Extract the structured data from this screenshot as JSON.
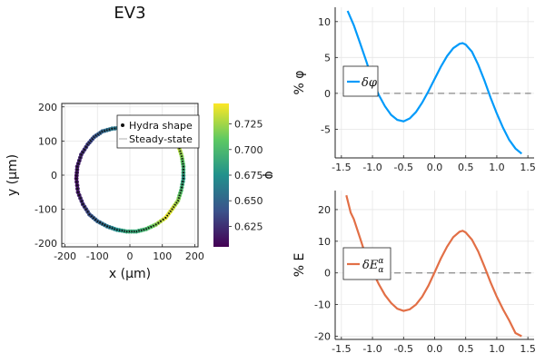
{
  "chart_data": [
    {
      "type": "scatter",
      "title": "EV3",
      "xlabel": "x (μm)",
      "ylabel": "y (μm)",
      "xlim": [
        -210,
        210
      ],
      "ylim": [
        -210,
        210
      ],
      "xticks": [
        "-200",
        "-100",
        "0",
        "100",
        "200"
      ],
      "yticks": [
        "-200",
        "-100",
        "0",
        "100",
        "200"
      ],
      "grid": true,
      "legend_position": "top-right",
      "colorbar": {
        "label": "φ",
        "range": [
          0.605,
          0.745
        ],
        "ticks": [
          "0.625",
          "0.650",
          "0.675",
          "0.700",
          "0.725"
        ],
        "colormap": "viridis"
      },
      "series": [
        {
          "name": "Hydra shape",
          "kind": "markers",
          "x": [
            -20,
            20,
            60,
            100,
            130,
            150,
            160,
            165,
            165,
            158,
            148,
            130,
            110,
            80,
            50,
            20,
            -10,
            -40,
            -70,
            -100,
            -125,
            -145,
            -160,
            -165,
            -162,
            -150,
            -130,
            -110,
            -85,
            -55
          ],
          "y": [
            140,
            140,
            136,
            128,
            110,
            85,
            55,
            25,
            -10,
            -45,
            -75,
            -100,
            -125,
            -145,
            -158,
            -165,
            -165,
            -160,
            -150,
            -135,
            -115,
            -85,
            -50,
            -10,
            25,
            60,
            90,
            112,
            128,
            136
          ],
          "phi": [
            0.66,
            0.65,
            0.7,
            0.72,
            0.74,
            0.735,
            0.72,
            0.7,
            0.68,
            0.7,
            0.72,
            0.735,
            0.74,
            0.72,
            0.7,
            0.69,
            0.69,
            0.675,
            0.66,
            0.65,
            0.64,
            0.625,
            0.615,
            0.61,
            0.615,
            0.62,
            0.63,
            0.64,
            0.65,
            0.66
          ]
        },
        {
          "name": "Steady-state",
          "kind": "line",
          "x": [
            -20,
            20,
            60,
            100,
            130,
            150,
            160,
            165,
            165,
            158,
            148,
            130,
            110,
            80,
            50,
            20,
            -10,
            -40,
            -70,
            -100,
            -125,
            -145,
            -160,
            -165,
            -162,
            -150,
            -130,
            -110,
            -85,
            -55,
            -20
          ],
          "y": [
            140,
            140,
            136,
            128,
            110,
            85,
            55,
            25,
            -10,
            -45,
            -75,
            -100,
            -125,
            -145,
            -158,
            -165,
            -165,
            -160,
            -150,
            -135,
            -115,
            -85,
            -50,
            -10,
            25,
            60,
            90,
            112,
            128,
            136,
            140
          ]
        }
      ]
    },
    {
      "type": "line",
      "xlabel": "",
      "ylabel": "% φ",
      "xlim": [
        -1.6,
        1.6
      ],
      "ylim": [
        -9,
        12
      ],
      "xticks": [
        "-1.5",
        "-1.0",
        "-0.5",
        "0.0",
        "0.5",
        "1.0",
        "1.5"
      ],
      "yticks": [
        "-5",
        "0",
        "5",
        "10"
      ],
      "grid": true,
      "legend_position": "middle-left",
      "zero_line": true,
      "series": [
        {
          "name": "δφ",
          "color": "#009AFA",
          "x": [
            -1.4,
            -1.3,
            -1.2,
            -1.1,
            -1.0,
            -0.9,
            -0.8,
            -0.7,
            -0.6,
            -0.5,
            -0.4,
            -0.3,
            -0.2,
            -0.1,
            0.0,
            0.1,
            0.2,
            0.3,
            0.4,
            0.45,
            0.5,
            0.6,
            0.7,
            0.8,
            0.9,
            1.0,
            1.1,
            1.2,
            1.3,
            1.4
          ],
          "y": [
            11.5,
            9.5,
            7,
            4.5,
            1.8,
            -0.2,
            -1.8,
            -3,
            -3.7,
            -3.9,
            -3.5,
            -2.6,
            -1.3,
            0.3,
            2,
            3.7,
            5.2,
            6.3,
            6.9,
            7,
            6.8,
            5.8,
            4,
            1.8,
            -0.6,
            -2.8,
            -4.8,
            -6.5,
            -7.7,
            -8.4
          ]
        }
      ]
    },
    {
      "type": "line",
      "xlabel": "",
      "ylabel": "% E",
      "xlim": [
        -1.6,
        1.6
      ],
      "ylim": [
        -21,
        26
      ],
      "xticks": [
        "-1.5",
        "-1.0",
        "-0.5",
        "0.0",
        "0.5",
        "1.0",
        "1.5"
      ],
      "yticks": [
        "-20",
        "-10",
        "0",
        "10",
        "20"
      ],
      "grid": true,
      "legend_position": "middle-left",
      "zero_line": true,
      "series": [
        {
          "name": "δEαα",
          "color": "#E26F46",
          "x": [
            -1.42,
            -1.35,
            -1.3,
            -1.2,
            -1.1,
            -1.0,
            -0.9,
            -0.8,
            -0.7,
            -0.6,
            -0.5,
            -0.4,
            -0.3,
            -0.2,
            -0.1,
            0.0,
            0.1,
            0.2,
            0.3,
            0.4,
            0.45,
            0.5,
            0.6,
            0.7,
            0.8,
            0.9,
            1.0,
            1.1,
            1.2,
            1.3,
            1.4
          ],
          "y": [
            24.5,
            19,
            17,
            11,
            5,
            0.5,
            -3.5,
            -7,
            -9.5,
            -11.3,
            -12,
            -11.5,
            -10,
            -7.5,
            -4,
            0.2,
            4.5,
            8.3,
            11.3,
            13,
            13.3,
            12.8,
            10.5,
            6.8,
            2,
            -3,
            -7.5,
            -11.5,
            -15,
            -19,
            -20
          ]
        }
      ]
    }
  ]
}
